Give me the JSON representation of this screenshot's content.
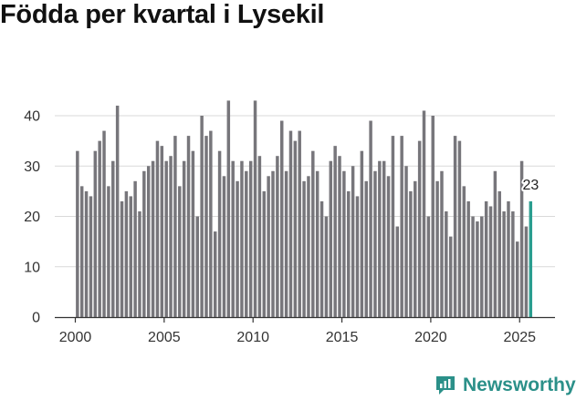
{
  "title": "Födda per kvartal i Lysekil",
  "brand": "Newsworthy",
  "colors": {
    "bar": "#77767b",
    "highlight": "#2a9d8f",
    "grid": "#d9d9d9",
    "brand": "#2b9089"
  },
  "chart_data": {
    "type": "bar",
    "title": "Födda per kvartal i Lysekil",
    "xlabel": "",
    "ylabel": "",
    "x_start": 2000,
    "x_ticks": [
      "2000",
      "2005",
      "2010",
      "2015",
      "2020",
      "2025"
    ],
    "y_ticks": [
      "0",
      "10",
      "20",
      "30",
      "40"
    ],
    "ylim": [
      0,
      45
    ],
    "grid": true,
    "values": [
      33,
      26,
      25,
      24,
      33,
      35,
      37,
      26,
      31,
      42,
      23,
      25,
      24,
      27,
      21,
      29,
      30,
      31,
      35,
      34,
      31,
      32,
      36,
      26,
      31,
      36,
      33,
      20,
      40,
      36,
      37,
      17,
      33,
      28,
      43,
      31,
      27,
      31,
      29,
      31,
      43,
      32,
      25,
      28,
      29,
      32,
      39,
      29,
      37,
      35,
      37,
      27,
      28,
      33,
      29,
      23,
      20,
      31,
      34,
      32,
      29,
      25,
      30,
      24,
      33,
      27,
      39,
      29,
      31,
      31,
      28,
      36,
      18,
      36,
      30,
      25,
      27,
      35,
      41,
      20,
      40,
      27,
      29,
      21,
      16,
      36,
      35,
      26,
      23,
      20,
      19,
      20,
      23,
      22,
      29,
      25,
      21,
      23,
      21,
      15,
      31,
      18,
      23
    ],
    "highlight_index": 102,
    "annotation": "23"
  }
}
